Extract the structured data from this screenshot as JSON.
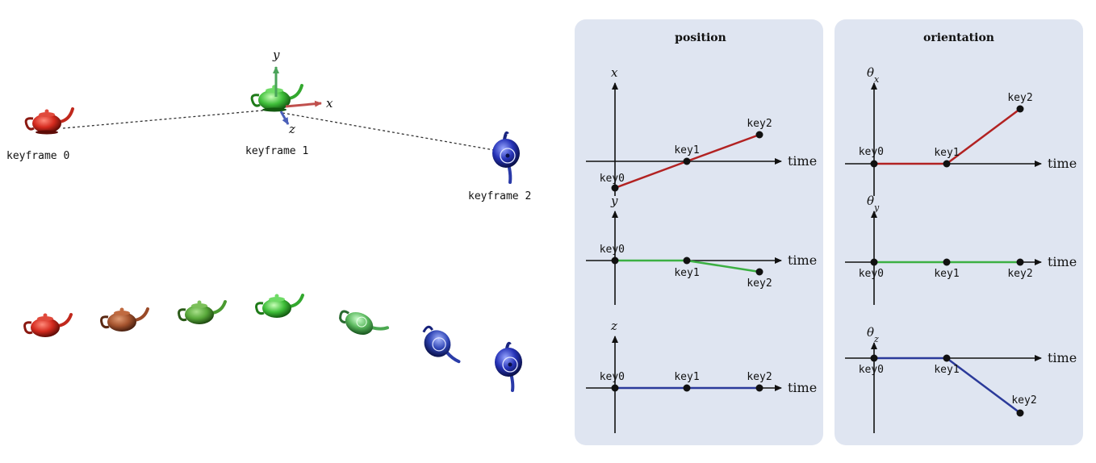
{
  "scene": {
    "keyframe_labels": [
      "keyframe 0",
      "keyframe 1",
      "keyframe 2"
    ],
    "axis_labels": {
      "x": "x",
      "y": "y",
      "z": "z"
    },
    "keyframe_colors": [
      "#d42a1e",
      "#3fbf3a",
      "#2633b8"
    ],
    "interpolated_colors": [
      "#d42a1e",
      "#a5542e",
      "#58a83a",
      "#3fbf3a",
      "#5bb85e",
      "#2f45b5",
      "#2633b8"
    ]
  },
  "panels": {
    "position": {
      "title": "position",
      "graphs": [
        {
          "axis_label": "x",
          "time_label": "time",
          "color": "#b22222",
          "keys": [
            {
              "label": "key0",
              "value": -1.0
            },
            {
              "label": "key1",
              "value": 0.0
            },
            {
              "label": "key2",
              "value": 1.0
            }
          ]
        },
        {
          "axis_label": "y",
          "time_label": "time",
          "color": "#3cb043",
          "keys": [
            {
              "label": "key0",
              "value": 0.0
            },
            {
              "label": "key1",
              "value": 0.0
            },
            {
              "label": "key2",
              "value": -0.4
            }
          ]
        },
        {
          "axis_label": "z",
          "time_label": "time",
          "color": "#2b3a9a",
          "keys": [
            {
              "label": "key0",
              "value": 0.0
            },
            {
              "label": "key1",
              "value": 0.0
            },
            {
              "label": "key2",
              "value": 0.0
            }
          ]
        }
      ]
    },
    "orientation": {
      "title": "orientation",
      "graphs": [
        {
          "axis_label": "θ",
          "axis_sub": "x",
          "time_label": "time",
          "color": "#b22222",
          "keys": [
            {
              "label": "key0",
              "value": 0.0
            },
            {
              "label": "key1",
              "value": 0.0
            },
            {
              "label": "key2",
              "value": 1.0
            }
          ]
        },
        {
          "axis_label": "θ",
          "axis_sub": "y",
          "time_label": "time",
          "color": "#3cb043",
          "keys": [
            {
              "label": "key0",
              "value": 0.0
            },
            {
              "label": "key1",
              "value": 0.0
            },
            {
              "label": "key2",
              "value": 0.0
            }
          ]
        },
        {
          "axis_label": "θ",
          "axis_sub": "z",
          "time_label": "time",
          "color": "#2b3a9a",
          "keys": [
            {
              "label": "key0",
              "value": 0.0
            },
            {
              "label": "key1",
              "value": 0.0
            },
            {
              "label": "key2",
              "value": -1.0
            }
          ]
        }
      ]
    }
  }
}
